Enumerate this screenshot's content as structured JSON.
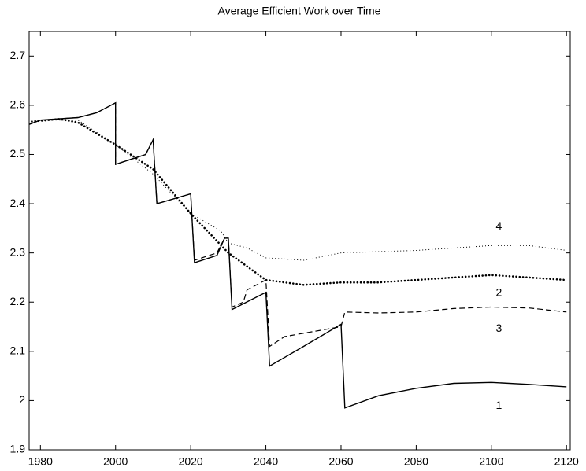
{
  "chart_data": {
    "type": "line",
    "title": "Average Efficient Work over Time",
    "xlim": [
      1977,
      2121
    ],
    "ylim": [
      1.9,
      2.75
    ],
    "xticks": [
      1980,
      2000,
      2020,
      2040,
      2060,
      2080,
      2100,
      2120
    ],
    "yticks": [
      1.9,
      2,
      2.1,
      2.2,
      2.3,
      2.4,
      2.5,
      2.6,
      2.7
    ],
    "series": [
      {
        "name": "1",
        "color": "#000000",
        "style": "solid",
        "width": 1.4,
        "x": [
          1975,
          1980,
          1990,
          1995,
          2000,
          2000,
          2008,
          2010,
          2011,
          2020,
          2021,
          2027,
          2029,
          2030,
          2031,
          2040,
          2041,
          2050,
          2060,
          2061,
          2070,
          2080,
          2090,
          2100,
          2110,
          2120
        ],
        "values": [
          2.555,
          2.57,
          2.575,
          2.585,
          2.605,
          2.48,
          2.5,
          2.53,
          2.4,
          2.42,
          2.28,
          2.295,
          2.33,
          2.33,
          2.185,
          2.22,
          2.07,
          2.11,
          2.155,
          1.985,
          2.01,
          2.025,
          2.035,
          2.037,
          2.033,
          2.028
        ]
      },
      {
        "name": "2",
        "color": "#000000",
        "style": "dotted",
        "width": 2.6,
        "x": [
          1975,
          1985,
          1990,
          2000,
          2010,
          2020,
          2030,
          2040,
          2050,
          2060,
          2070,
          2080,
          2090,
          2100,
          2110,
          2120
        ],
        "values": [
          2.565,
          2.572,
          2.565,
          2.52,
          2.47,
          2.38,
          2.3,
          2.245,
          2.235,
          2.24,
          2.24,
          2.245,
          2.25,
          2.255,
          2.25,
          2.245
        ]
      },
      {
        "name": "3",
        "color": "#000000",
        "style": "dashed",
        "width": 1.2,
        "x": [
          1975,
          1980,
          1990,
          1995,
          2000,
          2000,
          2008,
          2010,
          2011,
          2020,
          2021,
          2027,
          2029,
          2030,
          2031,
          2034,
          2035,
          2040,
          2041,
          2045,
          2060,
          2061,
          2070,
          2080,
          2090,
          2100,
          2110,
          2120
        ],
        "values": [
          2.555,
          2.57,
          2.575,
          2.585,
          2.605,
          2.48,
          2.5,
          2.53,
          2.4,
          2.42,
          2.285,
          2.3,
          2.33,
          2.33,
          2.19,
          2.2,
          2.225,
          2.245,
          2.11,
          2.13,
          2.15,
          2.18,
          2.178,
          2.18,
          2.187,
          2.19,
          2.188,
          2.18
        ]
      },
      {
        "name": "4",
        "color": "#000000",
        "style": "dotted",
        "width": 1,
        "x": [
          1975,
          1990,
          2000,
          2010,
          2020,
          2028,
          2030,
          2035,
          2040,
          2050,
          2060,
          2080,
          2100,
          2110,
          2120
        ],
        "values": [
          2.57,
          2.57,
          2.52,
          2.46,
          2.38,
          2.345,
          2.32,
          2.31,
          2.29,
          2.285,
          2.3,
          2.305,
          2.315,
          2.315,
          2.305
        ]
      }
    ]
  }
}
